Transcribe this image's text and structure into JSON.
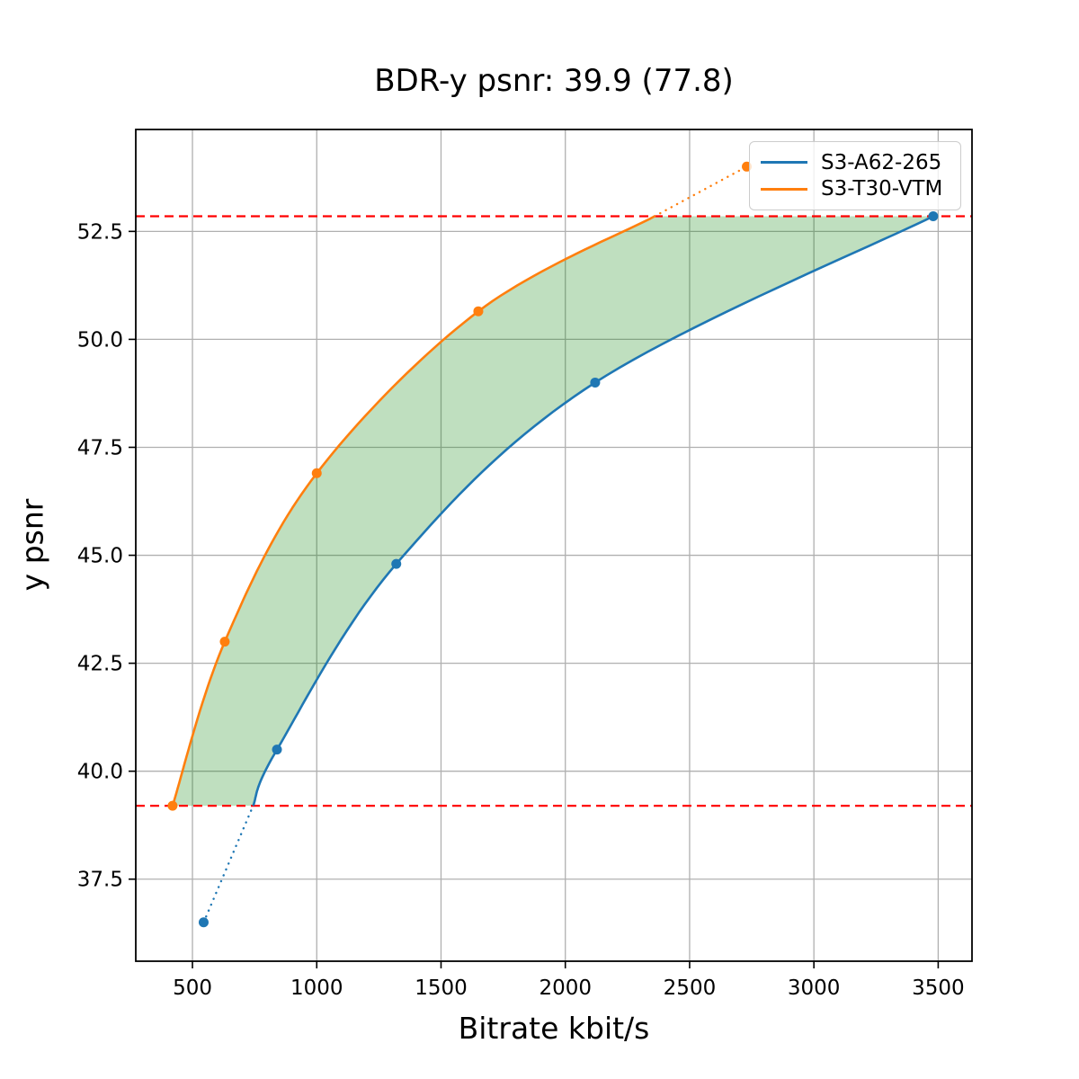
{
  "chart_data": {
    "type": "line",
    "title": "BDR-y psnr: 39.9 (77.8)",
    "xlabel": "Bitrate kbit/s",
    "ylabel": "y psnr",
    "xlim": [
      272,
      3636
    ],
    "ylim": [
      35.6,
      54.86
    ],
    "xticks": [
      500,
      1000,
      1500,
      2000,
      2500,
      3000,
      3500
    ],
    "xtick_labels": [
      "500",
      "1000",
      "1500",
      "2000",
      "2500",
      "3000",
      "3500"
    ],
    "yticks": [
      37.5,
      40.0,
      42.5,
      45.0,
      47.5,
      50.0,
      52.5
    ],
    "ytick_labels": [
      "37.5",
      "40.0",
      "42.5",
      "45.0",
      "47.5",
      "50.0",
      "52.5"
    ],
    "grid": true,
    "grid_color": "#b0b0b0",
    "legend_position": "upper right",
    "series": [
      {
        "name": "S3-A62-265",
        "color": "#1f77b4",
        "x": [
          545,
          840,
          1320,
          2120,
          3480
        ],
        "y": [
          36.5,
          40.5,
          44.8,
          49.0,
          52.85
        ]
      },
      {
        "name": "S3-T30-VTM",
        "color": "#ff7f0e",
        "x": [
          420,
          630,
          1000,
          1650,
          2730
        ],
        "y": [
          39.2,
          43.0,
          46.9,
          50.65,
          54.0
        ]
      }
    ],
    "reference_lines": {
      "color": "#ff0000",
      "style": "dashed",
      "y_values": [
        39.2,
        52.85
      ]
    },
    "shaded_region": {
      "between": [
        "S3-T30-VTM",
        "S3-A62-265"
      ],
      "y_low": 39.2,
      "y_high": 52.85,
      "color": "#008000",
      "opacity": 0.25
    }
  }
}
